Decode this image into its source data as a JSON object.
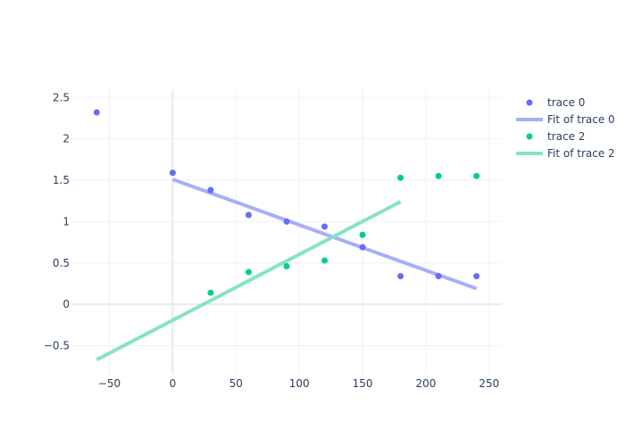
{
  "chart_data": {
    "type": "scatter",
    "xlim": [
      -80,
      260
    ],
    "ylim": [
      -0.85,
      2.6
    ],
    "x_ticks": [
      -50,
      0,
      50,
      100,
      150,
      200,
      250
    ],
    "x_tick_labels": [
      "−50",
      "0",
      "50",
      "100",
      "150",
      "200",
      "250"
    ],
    "y_ticks": [
      -0.5,
      0,
      0.5,
      1,
      1.5,
      2,
      2.5
    ],
    "y_tick_labels": [
      "−0.5",
      "0",
      "0.5",
      "1",
      "1.5",
      "2",
      "2.5"
    ],
    "grid": true,
    "legend_position": "top-right",
    "series": [
      {
        "name": "trace 0",
        "mode": "markers",
        "color": "#636efa",
        "points": [
          [
            -60,
            2.32
          ],
          [
            0,
            1.59
          ],
          [
            30,
            1.38
          ],
          [
            60,
            1.08
          ],
          [
            90,
            1.0
          ],
          [
            120,
            0.94
          ],
          [
            150,
            0.69
          ],
          [
            180,
            0.34
          ],
          [
            210,
            0.34
          ],
          [
            240,
            0.34
          ]
        ]
      },
      {
        "name": "Fit of trace 0",
        "mode": "line",
        "color": "#a8aef8",
        "points": [
          [
            0,
            1.51
          ],
          [
            240,
            0.19
          ]
        ]
      },
      {
        "name": "trace 2",
        "mode": "markers",
        "color": "#00cc96",
        "points": [
          [
            30,
            0.14
          ],
          [
            60,
            0.39
          ],
          [
            90,
            0.46
          ],
          [
            120,
            0.53
          ],
          [
            150,
            0.84
          ],
          [
            180,
            1.53
          ],
          [
            210,
            1.55
          ],
          [
            240,
            1.55
          ]
        ]
      },
      {
        "name": "Fit of trace 2",
        "mode": "line",
        "color": "#86e3c4",
        "points": [
          [
            -60,
            -0.67
          ],
          [
            180,
            1.24
          ]
        ]
      }
    ]
  }
}
